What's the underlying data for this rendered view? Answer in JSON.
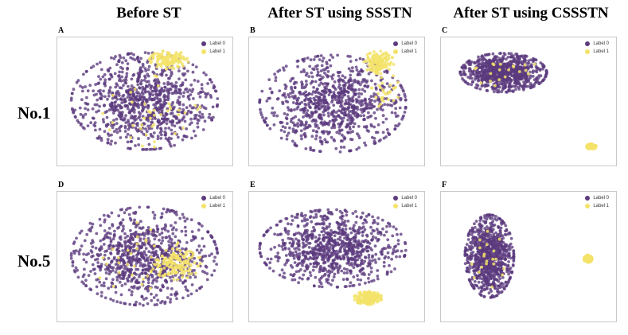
{
  "figure": {
    "column_titles": [
      "Before ST",
      "After ST using SSSTN",
      "After ST using CSSSTN"
    ],
    "row_titles": [
      "No.1",
      "No.5"
    ]
  },
  "colors": {
    "label0": "#5b3a7e",
    "label1": "#f3e36a"
  },
  "chart_data": [
    {
      "type": "scatter",
      "panel": "A",
      "row": "No.1",
      "column": "Before ST",
      "legend": [
        "Label 0",
        "Label 1"
      ],
      "series": [
        {
          "name": "Label 0",
          "clusters": [
            {
              "center": [
                0.0,
                0.0
              ],
              "spread": [
                1.05,
                0.95
              ],
              "count": 900
            }
          ]
        },
        {
          "name": "Label 1",
          "clusters": [
            {
              "center": [
                0.35,
                0.8
              ],
              "spread": [
                0.28,
                0.18
              ],
              "count": 130
            },
            {
              "center": [
                0.1,
                -0.2
              ],
              "spread": [
                0.7,
                0.7
              ],
              "count": 40
            }
          ]
        }
      ]
    },
    {
      "type": "scatter",
      "panel": "B",
      "row": "No.1",
      "column": "After ST using SSSTN",
      "legend": [
        "Label 0",
        "Label 1"
      ],
      "series": [
        {
          "name": "Label 0",
          "clusters": [
            {
              "center": [
                -0.05,
                -0.05
              ],
              "spread": [
                1.05,
                0.95
              ],
              "count": 900
            }
          ]
        },
        {
          "name": "Label 1",
          "clusters": [
            {
              "center": [
                0.6,
                0.75
              ],
              "spread": [
                0.22,
                0.22
              ],
              "count": 140
            },
            {
              "center": [
                0.7,
                0.2
              ],
              "spread": [
                0.2,
                0.35
              ],
              "count": 30
            }
          ]
        }
      ]
    },
    {
      "type": "scatter",
      "panel": "C",
      "row": "No.1",
      "column": "After ST using CSSSTN",
      "legend": [
        "Label 0",
        "Label 1"
      ],
      "series": [
        {
          "name": "Label 0",
          "clusters": [
            {
              "center": [
                -0.35,
                0.55
              ],
              "spread": [
                0.62,
                0.38
              ],
              "count": 900
            }
          ]
        },
        {
          "name": "Label 1",
          "clusters": [
            {
              "center": [
                0.9,
                -0.88
              ],
              "spread": [
                0.07,
                0.05
              ],
              "count": 160
            },
            {
              "center": [
                -0.3,
                0.55
              ],
              "spread": [
                0.5,
                0.3
              ],
              "count": 20
            }
          ]
        }
      ]
    },
    {
      "type": "scatter",
      "panel": "D",
      "row": "No.5",
      "column": "Before ST",
      "legend": [
        "Label 0",
        "Label 1"
      ],
      "series": [
        {
          "name": "Label 0",
          "clusters": [
            {
              "center": [
                0.0,
                0.0
              ],
              "spread": [
                1.05,
                0.95
              ],
              "count": 900
            }
          ]
        },
        {
          "name": "Label 1",
          "clusters": [
            {
              "center": [
                0.45,
                -0.15
              ],
              "spread": [
                0.35,
                0.3
              ],
              "count": 130
            },
            {
              "center": [
                0.0,
                0.0
              ],
              "spread": [
                0.8,
                0.7
              ],
              "count": 40
            }
          ]
        }
      ]
    },
    {
      "type": "scatter",
      "panel": "E",
      "row": "No.5",
      "column": "After ST using SSSTN",
      "legend": [
        "Label 0",
        "Label 1"
      ],
      "series": [
        {
          "name": "Label 0",
          "clusters": [
            {
              "center": [
                -0.05,
                0.15
              ],
              "spread": [
                1.05,
                0.75
              ],
              "count": 900
            }
          ]
        },
        {
          "name": "Label 1",
          "clusters": [
            {
              "center": [
                0.45,
                -0.8
              ],
              "spread": [
                0.2,
                0.13
              ],
              "count": 170
            }
          ]
        }
      ]
    },
    {
      "type": "scatter",
      "panel": "F",
      "row": "No.5",
      "column": "After ST using CSSSTN",
      "legend": [
        "Label 0",
        "Label 1"
      ],
      "series": [
        {
          "name": "Label 0",
          "clusters": [
            {
              "center": [
                -0.55,
                0.0
              ],
              "spread": [
                0.35,
                0.8
              ],
              "count": 900
            }
          ]
        },
        {
          "name": "Label 1",
          "clusters": [
            {
              "center": [
                0.85,
                -0.05
              ],
              "spread": [
                0.06,
                0.07
              ],
              "count": 160
            },
            {
              "center": [
                -0.55,
                0.0
              ],
              "spread": [
                0.3,
                0.6
              ],
              "count": 20
            }
          ]
        }
      ]
    }
  ]
}
